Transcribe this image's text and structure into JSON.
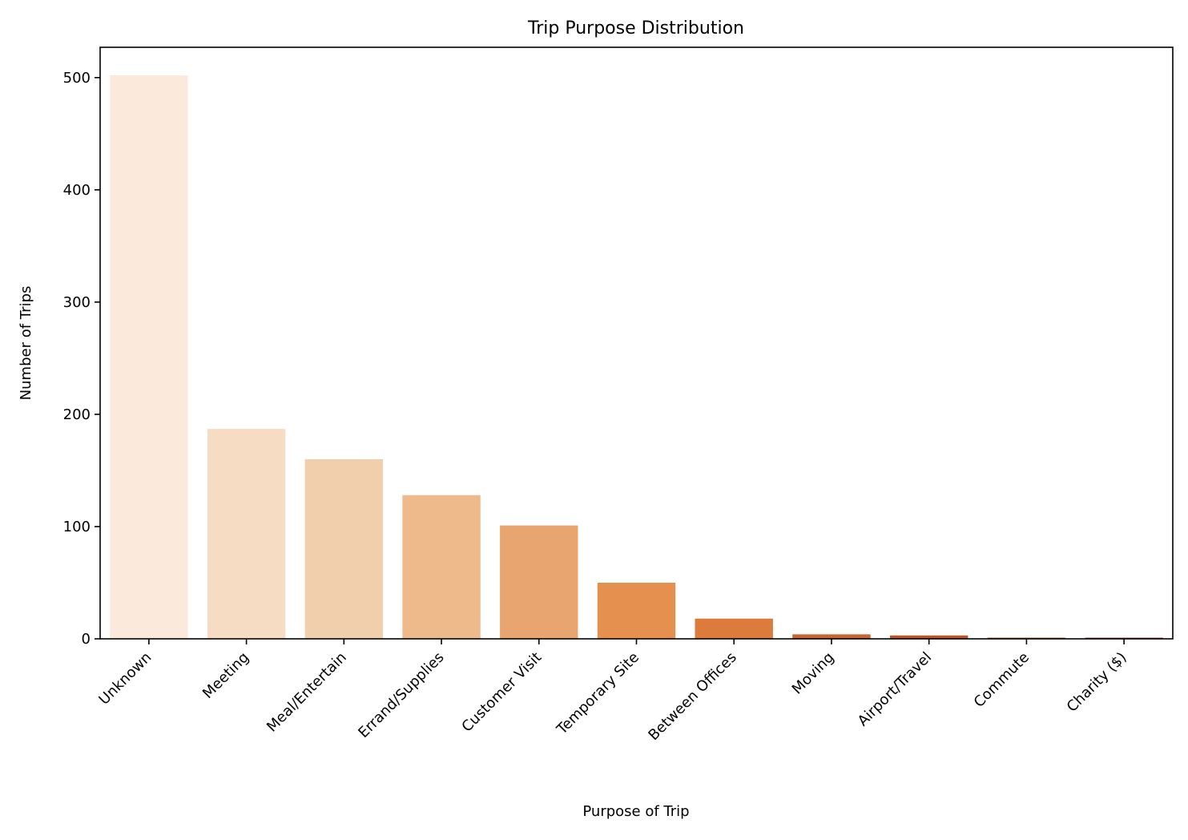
{
  "chart_data": {
    "type": "bar",
    "title": "Trip Purpose Distribution",
    "xlabel": "Purpose of Trip",
    "ylabel": "Number of Trips",
    "categories": [
      "Unknown",
      "Meeting",
      "Meal/Entertain",
      "Errand/Supplies",
      "Customer Visit",
      "Temporary Site",
      "Between Offices",
      "Moving",
      "Airport/Travel",
      "Commute",
      "Charity ($)"
    ],
    "values": [
      502,
      187,
      160,
      128,
      101,
      50,
      18,
      4,
      3,
      1,
      1
    ],
    "colors": [
      "#fbeadb",
      "#f7dcc4",
      "#f2cfac",
      "#eeba8c",
      "#e9a56f",
      "#e5904f",
      "#dc7b3b",
      "#c9642a",
      "#bd5524",
      "#aa4720",
      "#9e3f1c"
    ],
    "ylim": [
      0,
      527
    ],
    "yticks": [
      0,
      100,
      200,
      300,
      400,
      500
    ],
    "grid": false
  }
}
